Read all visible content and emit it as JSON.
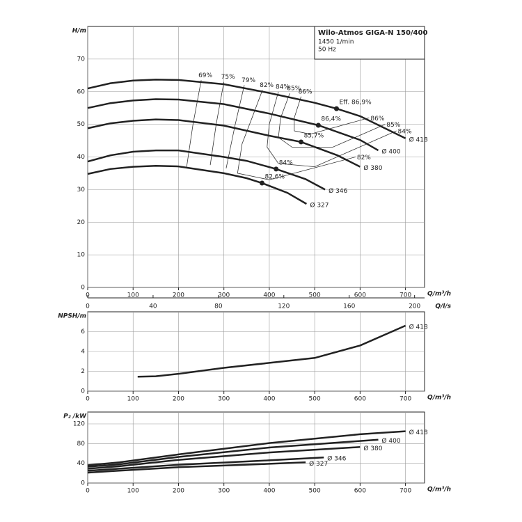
{
  "chart_data": [
    {
      "type": "line",
      "title": "Wilo-Atmos GIGA-N 150/400",
      "annotations": [
        "1450 1/min",
        "50 Hz"
      ],
      "x_label": "Q/m³/h",
      "y_label": "H/m",
      "xlim": [
        0,
        742
      ],
      "ylim": [
        0,
        80
      ],
      "xticks": [
        0,
        100,
        200,
        300,
        400,
        500,
        600,
        700
      ],
      "yticks": [
        0,
        10,
        20,
        30,
        40,
        50,
        60,
        70
      ],
      "grid": true,
      "secondary_x": {
        "label": "Q/l/s",
        "xlim": [
          0,
          206.1
        ],
        "xticks": [
          0,
          40,
          80,
          120,
          160,
          200
        ]
      },
      "series": [
        {
          "name": "Ø 418",
          "color": "#222222",
          "x": [
            0,
            50,
            100,
            150,
            200,
            300,
            400,
            500,
            548,
            600,
            700
          ],
          "values": [
            61,
            62.6,
            63.4,
            63.7,
            63.6,
            62.3,
            59.6,
            56.6,
            54.8,
            52.5,
            45.7
          ],
          "bep": {
            "x": 548,
            "y": 54.8,
            "label": "Eff. 86,9%"
          }
        },
        {
          "name": "Ø 400",
          "color": "#222222",
          "x": [
            0,
            50,
            100,
            150,
            200,
            300,
            400,
            508,
            600,
            640
          ],
          "values": [
            55,
            56.5,
            57.3,
            57.7,
            57.6,
            56.2,
            53.3,
            49.7,
            45.2,
            42
          ],
          "bep": {
            "x": 508,
            "y": 49.7,
            "label": "86,4%"
          }
        },
        {
          "name": "Ø 380",
          "color": "#222222",
          "x": [
            0,
            50,
            100,
            150,
            200,
            300,
            400,
            470,
            550,
            600
          ],
          "values": [
            48.8,
            50.3,
            51.1,
            51.5,
            51.3,
            49.6,
            46.5,
            44.6,
            40.5,
            37
          ],
          "bep": {
            "x": 470,
            "y": 44.6,
            "label": "85,7%"
          }
        },
        {
          "name": "Ø 346",
          "color": "#222222",
          "x": [
            0,
            50,
            100,
            150,
            200,
            300,
            350,
            415,
            480,
            523
          ],
          "values": [
            38.6,
            40.5,
            41.6,
            42,
            42,
            40,
            38.8,
            36.3,
            33.2,
            30
          ],
          "bep": {
            "x": 415,
            "y": 36.3,
            "label": "84%"
          }
        },
        {
          "name": "Ø 327",
          "color": "#222222",
          "x": [
            0,
            50,
            100,
            150,
            200,
            300,
            350,
            384,
            440,
            482
          ],
          "values": [
            34.8,
            36.3,
            37,
            37.3,
            37.1,
            35,
            33.5,
            32,
            29,
            25.6
          ],
          "bep": {
            "x": 384,
            "y": 32,
            "label": "82,6%"
          }
        }
      ],
      "efficiency_lines": [
        {
          "label": "69%",
          "x": [
            250,
            232,
            218
          ],
          "values": [
            63.5,
            50,
            37
          ]
        },
        {
          "label": "75%",
          "x": [
            300,
            283,
            270
          ],
          "values": [
            63,
            50,
            37.5
          ]
        },
        {
          "label": "79%",
          "x": [
            345,
            325,
            305
          ],
          "values": [
            62,
            50,
            36.5
          ]
        },
        {
          "label": "82%",
          "x": [
            385,
            362,
            340,
            330,
            400,
            590
          ],
          "values": [
            60.5,
            52,
            44,
            35,
            33,
            40
          ],
          "end_label": "82%"
        },
        {
          "label": "84%",
          "x": [
            420,
            400,
            395,
            420,
            500,
            680
          ],
          "values": [
            60,
            50,
            43,
            38,
            37,
            48
          ],
          "end_label": "84%"
        },
        {
          "label": "85%",
          "x": [
            445,
            425,
            420,
            450,
            540,
            655
          ],
          "values": [
            59.5,
            52,
            46,
            43,
            43,
            50
          ],
          "end_label": "85%"
        },
        {
          "label": "86%",
          "x": [
            470,
            455,
            455,
            490,
            620
          ],
          "values": [
            58.5,
            52,
            48,
            47,
            52
          ],
          "end_label": "86%"
        }
      ]
    },
    {
      "type": "line",
      "x_label": "Q/m³/h",
      "y_label": "NPSH/m",
      "xlim": [
        0,
        742
      ],
      "ylim": [
        0,
        8
      ],
      "xticks": [
        0,
        100,
        200,
        300,
        400,
        500,
        600,
        700
      ],
      "yticks": [
        0,
        2,
        4,
        6
      ],
      "grid": true,
      "series": [
        {
          "name": "Ø 418",
          "color": "#222222",
          "x": [
            110,
            150,
            200,
            300,
            400,
            500,
            600,
            700
          ],
          "values": [
            1.45,
            1.5,
            1.75,
            2.35,
            2.85,
            3.35,
            4.6,
            6.6
          ]
        }
      ]
    },
    {
      "type": "line",
      "x_label": "Q/m³/h",
      "y_label": "P₂ /kW",
      "xlim": [
        0,
        742
      ],
      "ylim": [
        0,
        144
      ],
      "xticks": [
        0,
        100,
        200,
        300,
        400,
        500,
        600,
        700
      ],
      "yticks": [
        0,
        40,
        80,
        120
      ],
      "grid": true,
      "series": [
        {
          "name": "Ø 418",
          "color": "#222222",
          "x": [
            0,
            70,
            200,
            400,
            600,
            700
          ],
          "values": [
            36,
            42,
            58,
            81,
            99,
            105
          ]
        },
        {
          "name": "Ø 400",
          "color": "#222222",
          "x": [
            0,
            70,
            200,
            400,
            640
          ],
          "values": [
            33,
            38,
            53,
            72,
            88
          ]
        },
        {
          "name": "Ø 380",
          "color": "#222222",
          "x": [
            0,
            70,
            200,
            400,
            600
          ],
          "values": [
            29,
            34,
            47,
            62,
            73
          ]
        },
        {
          "name": "Ø 346",
          "color": "#222222",
          "x": [
            0,
            50,
            200,
            400,
            520
          ],
          "values": [
            25,
            28,
            37,
            46,
            52
          ]
        },
        {
          "name": "Ø 327",
          "color": "#222222",
          "x": [
            0,
            50,
            200,
            400,
            480
          ],
          "values": [
            21,
            24,
            32,
            39,
            42
          ]
        }
      ]
    }
  ]
}
